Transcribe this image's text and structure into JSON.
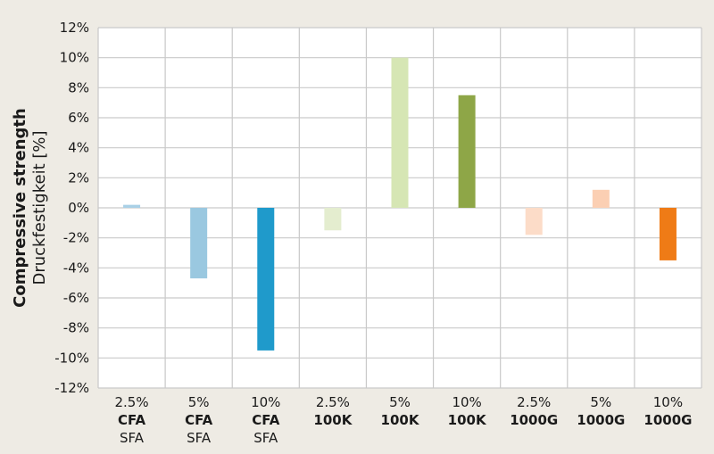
{
  "chart_data": {
    "type": "bar",
    "ylabel": "Compressive strength",
    "ylabel_secondary": "Druckfestigkeit [%]",
    "ylim": [
      -12,
      12
    ],
    "ytick_step": 2,
    "yticks": [
      "12%",
      "10%",
      "8%",
      "6%",
      "4%",
      "2%",
      "0%",
      "-2%",
      "-4%",
      "-6%",
      "-8%",
      "-10%",
      "-12%"
    ],
    "grid": true,
    "categories": [
      {
        "line1": "2.5%",
        "line2": "CFA",
        "line3": "SFA"
      },
      {
        "line1": "5%",
        "line2": "CFA",
        "line3": "SFA"
      },
      {
        "line1": "10%",
        "line2": "CFA",
        "line3": "SFA"
      },
      {
        "line1": "2.5%",
        "line2": "100K",
        "line3": ""
      },
      {
        "line1": "5%",
        "line2": "100K",
        "line3": ""
      },
      {
        "line1": "10%",
        "line2": "100K",
        "line3": ""
      },
      {
        "line1": "2.5%",
        "line2": "1000G",
        "line3": ""
      },
      {
        "line1": "5%",
        "line2": "1000G",
        "line3": ""
      },
      {
        "line1": "10%",
        "line2": "1000G",
        "line3": ""
      }
    ],
    "values": [
      0.2,
      -4.7,
      -9.5,
      -1.5,
      10.0,
      7.5,
      -1.8,
      1.2,
      -3.5
    ],
    "colors": [
      "#a9d0e6",
      "#9ac8e0",
      "#1f9acb",
      "#e4edcf",
      "#d6e6b4",
      "#8ea647",
      "#fcdcc8",
      "#fbcfb3",
      "#ef7b16"
    ]
  }
}
